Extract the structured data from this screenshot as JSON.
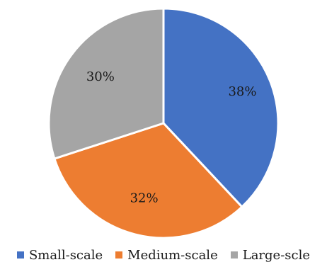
{
  "chart_data": {
    "type": "pie",
    "title": "",
    "categories": [
      "Small-scale",
      "Medium-scale",
      "Large-scle"
    ],
    "values": [
      38,
      32,
      30
    ],
    "labels": [
      "38%",
      "32%",
      "30%"
    ],
    "colors": [
      "#4472C4",
      "#ED7D31",
      "#A5A5A5"
    ],
    "start_angle": "12 o'clock",
    "direction": "clockwise",
    "legend": "bottom"
  }
}
